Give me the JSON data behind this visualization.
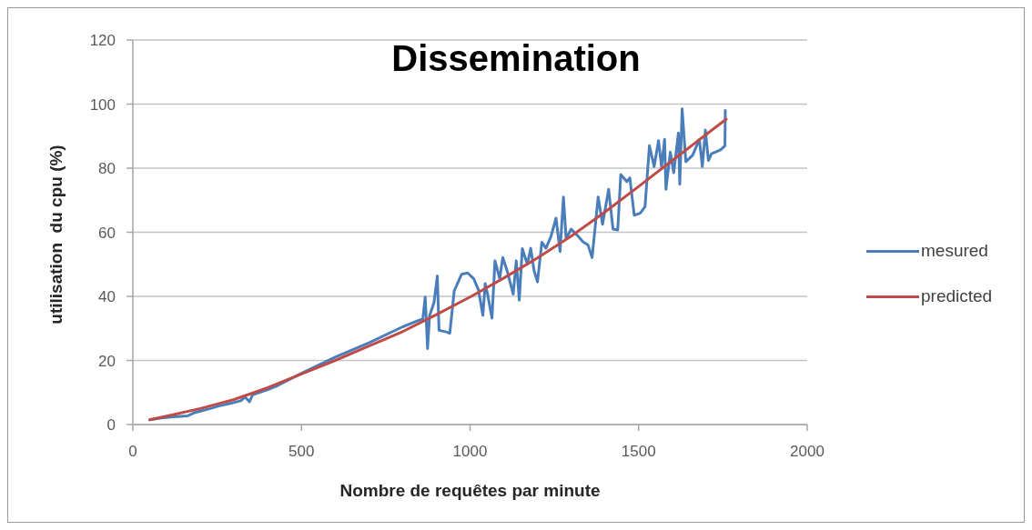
{
  "chart_data": {
    "type": "line",
    "title": "Dissemination",
    "xlabel": "Nombre de requêtes par minute",
    "ylabel": "utilisation  du cpu (%)",
    "series": [
      {
        "name": "mesured",
        "color": "#4a7ebb",
        "x": [
          50,
          80,
          120,
          162,
          180,
          200,
          230,
          252,
          288,
          320,
          333,
          346,
          355,
          400,
          430,
          500,
          600,
          700,
          800,
          860,
          867,
          874,
          880,
          893,
          903,
          908,
          930,
          940,
          953,
          975,
          993,
          1011,
          1025,
          1038,
          1045,
          1052,
          1065,
          1074,
          1088,
          1097,
          1110,
          1128,
          1137,
          1146,
          1155,
          1170,
          1180,
          1190,
          1200,
          1213,
          1225,
          1240,
          1255,
          1267,
          1277,
          1285,
          1300,
          1321,
          1335,
          1350,
          1362,
          1380,
          1393,
          1411,
          1424,
          1438,
          1447,
          1465,
          1474,
          1487,
          1505,
          1519,
          1532,
          1546,
          1559,
          1568,
          1577,
          1581,
          1594,
          1604,
          1618,
          1622,
          1629,
          1640,
          1660,
          1680,
          1689,
          1698,
          1707,
          1716,
          1743,
          1756,
          1757
        ],
        "values": [
          1.5,
          2.0,
          2.4,
          2.7,
          3.6,
          4.2,
          5.0,
          5.7,
          6.6,
          7.4,
          8.6,
          7.1,
          9.3,
          10.9,
          12.2,
          16.0,
          21.0,
          25.5,
          30.5,
          33.0,
          39.8,
          23.7,
          34,
          38,
          46.4,
          29.4,
          28.9,
          28.5,
          41.7,
          46.9,
          47.3,
          45.5,
          42,
          34.1,
          44,
          40.7,
          33.2,
          51.1,
          45.5,
          52.1,
          48,
          40.7,
          51.1,
          38.8,
          54.9,
          50,
          55,
          48,
          44.5,
          56.9,
          55,
          58.7,
          64.4,
          54,
          71,
          58,
          61,
          58.7,
          57,
          56,
          52.1,
          71,
          62.5,
          73.4,
          61,
          60.7,
          78,
          75.8,
          77,
          65.3,
          66,
          68,
          87,
          80.5,
          88.6,
          80.5,
          89,
          73.4,
          85,
          78.6,
          91,
          75,
          98.5,
          82,
          84,
          89,
          80.5,
          91.9,
          82.4,
          84.5,
          85.7,
          87,
          98
        ]
      },
      {
        "name": "predicted",
        "color": "#be4b48",
        "x": [
          50,
          100,
          200,
          300,
          400,
          500,
          600,
          700,
          800,
          900,
          1000,
          1100,
          1200,
          1300,
          1400,
          1500,
          1600,
          1700,
          1760
        ],
        "values": [
          1.5,
          2.6,
          5.0,
          7.8,
          11.5,
          15.8,
          20,
          24.5,
          29,
          34.3,
          39.8,
          45.7,
          52,
          58.8,
          66.3,
          74.3,
          82.4,
          90.5,
          95.3
        ]
      }
    ],
    "xlim": [
      0,
      2000
    ],
    "xticks": [
      0,
      500,
      1000,
      1500,
      2000
    ],
    "ylim": [
      0,
      120
    ],
    "yticks": [
      0,
      20,
      40,
      60,
      80,
      100,
      120
    ],
    "grid": "y",
    "legend": "right"
  }
}
